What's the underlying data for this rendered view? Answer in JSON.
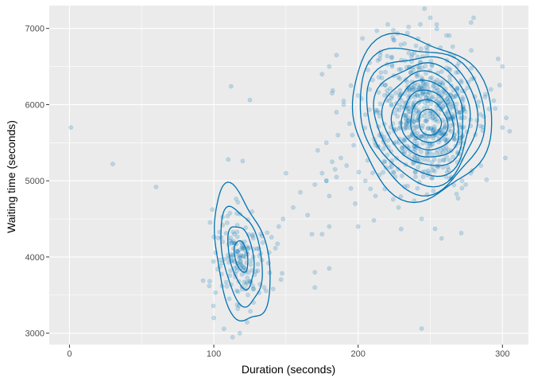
{
  "chart_data": {
    "type": "scatter",
    "title": "",
    "xlabel": "Duration (seconds)",
    "ylabel": "Waiting time (seconds)",
    "xlim": [
      -14,
      318
    ],
    "ylim": [
      2850,
      7300
    ],
    "x_ticks": [
      0,
      100,
      200,
      300
    ],
    "y_ticks": [
      3000,
      4000,
      5000,
      6000,
      7000
    ],
    "grid": true,
    "legend": "none",
    "point_color": "#0072B2",
    "contour_color": "#0072B2",
    "panel_background": "#EBEBEB",
    "points": [
      [
        1,
        5700
      ],
      [
        30,
        5220
      ],
      [
        60,
        4920
      ],
      [
        112,
        6240
      ],
      [
        125,
        6060
      ],
      [
        110,
        5280
      ],
      [
        120,
        5260
      ],
      [
        140,
        4260
      ],
      [
        145,
        4400
      ],
      [
        148,
        4500
      ],
      [
        150,
        5100
      ],
      [
        155,
        4650
      ],
      [
        160,
        4850
      ],
      [
        165,
        4550
      ],
      [
        170,
        4950
      ],
      [
        172,
        5400
      ],
      [
        175,
        5100
      ],
      [
        178,
        5500
      ],
      [
        180,
        4800
      ],
      [
        182,
        5250
      ],
      [
        185,
        5900
      ],
      [
        186,
        5600
      ],
      [
        188,
        5300
      ],
      [
        190,
        6000
      ],
      [
        192,
        5200
      ],
      [
        194,
        5750
      ],
      [
        195,
        4900
      ],
      [
        196,
        5600
      ],
      [
        198,
        4700
      ],
      [
        200,
        4400
      ],
      [
        178,
        5000
      ],
      [
        185,
        5050
      ],
      [
        168,
        4300
      ],
      [
        175,
        4300
      ],
      [
        170,
        3800
      ],
      [
        180,
        3850
      ],
      [
        170,
        3600
      ],
      [
        118,
        3000
      ],
      [
        100,
        3200
      ],
      [
        244,
        3060
      ],
      [
        244,
        4500
      ],
      [
        228,
        4650
      ],
      [
        212,
        4800
      ],
      [
        235,
        7020
      ],
      [
        250,
        7140
      ],
      [
        280,
        7140
      ],
      [
        297,
        6600
      ],
      [
        300,
        6500
      ],
      [
        302,
        5300
      ],
      [
        305,
        5650
      ],
      [
        300,
        5700
      ],
      [
        295,
        5950
      ],
      [
        292,
        6200
      ],
      [
        288,
        6100
      ],
      [
        285,
        5200
      ],
      [
        278,
        5100
      ],
      [
        272,
        5000
      ],
      [
        215,
        6600
      ],
      [
        208,
        6550
      ],
      [
        195,
        6250
      ],
      [
        200,
        6120
      ],
      [
        190,
        6050
      ],
      [
        182,
        6150
      ],
      [
        185,
        6650
      ],
      [
        180,
        6500
      ],
      [
        175,
        6400
      ],
      [
        203,
        6870
      ],
      [
        213,
        6970
      ],
      [
        208,
        6200
      ],
      [
        205,
        5000
      ],
      [
        180,
        4400
      ],
      [
        184,
        5150
      ],
      [
        178,
        5000
      ]
    ]
  }
}
